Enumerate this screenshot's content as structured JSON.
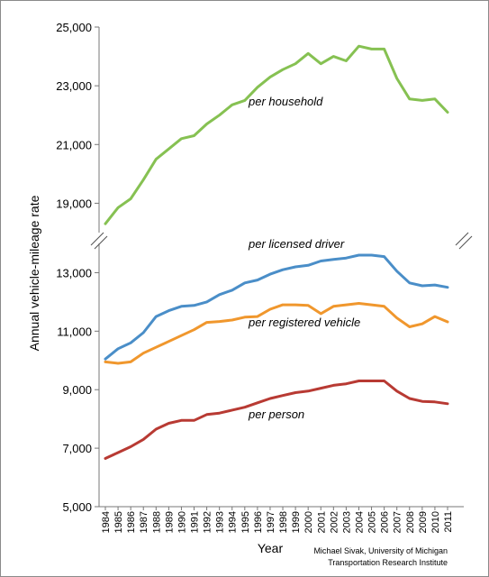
{
  "chart_data": {
    "type": "line",
    "title": "",
    "xlabel": "Year",
    "ylabel": "Annual vehicle-mileage rate",
    "credit": [
      "Michael Sivak, University of Michigan",
      "Transportation Research Institute"
    ],
    "x": [
      1984,
      1985,
      1986,
      1987,
      1988,
      1989,
      1990,
      1991,
      1992,
      1993,
      1994,
      1995,
      1996,
      1997,
      1998,
      1999,
      2000,
      2001,
      2002,
      2003,
      2004,
      2005,
      2006,
      2007,
      2008,
      2009,
      2010,
      2011
    ],
    "x_tick_labels": [
      "1984",
      "1985",
      "1986",
      "1987",
      "1988",
      "1989",
      "1990",
      "1991",
      "1992",
      "1993",
      "1994",
      "1995",
      "1996",
      "1997",
      "1998",
      "1999",
      "2000",
      "2001",
      "2002",
      "2003",
      "2004",
      "2005",
      "2006",
      "2007",
      "2008",
      "2009",
      "2010",
      "2011"
    ],
    "axis_break": true,
    "upper_panel": {
      "ylim": [
        18000,
        25000
      ],
      "y_tick_labels": [
        "25,000",
        "23,000",
        "21,000",
        "19,000"
      ],
      "y_ticks": [
        25000,
        23000,
        21000,
        19000
      ]
    },
    "lower_panel": {
      "ylim": [
        5000,
        14000
      ],
      "y_tick_labels": [
        "13,000",
        "11,000",
        "9,000",
        "7,000",
        "5,000"
      ],
      "y_ticks": [
        13000,
        11000,
        9000,
        7000,
        5000
      ]
    },
    "grid": false,
    "series": [
      {
        "name": "per household",
        "panel": "upper",
        "color": "#86c152",
        "values": [
          18300,
          18850,
          19150,
          19800,
          20500,
          20850,
          21200,
          21300,
          21700,
          22000,
          22350,
          22500,
          22950,
          23300,
          23550,
          23750,
          24100,
          23750,
          24000,
          23850,
          24350,
          24250,
          24250,
          23250,
          22550,
          22500,
          22550,
          22100
        ]
      },
      {
        "name": "per licensed driver",
        "panel": "lower",
        "color": "#4a8ec8",
        "values": [
          10050,
          10400,
          10600,
          10950,
          11500,
          11700,
          11850,
          11880,
          12000,
          12250,
          12400,
          12650,
          12750,
          12950,
          13100,
          13200,
          13250,
          13400,
          13450,
          13500,
          13600,
          13600,
          13550,
          13050,
          12650,
          12550,
          12580,
          12500
        ]
      },
      {
        "name": "per registered vehicle",
        "panel": "lower",
        "color": "#f0972d",
        "values": [
          9950,
          9900,
          9950,
          10250,
          10450,
          10650,
          10850,
          11050,
          11300,
          11330,
          11380,
          11480,
          11500,
          11750,
          11900,
          11900,
          11880,
          11600,
          11850,
          11900,
          11950,
          11900,
          11850,
          11450,
          11150,
          11250,
          11500,
          11320
        ]
      },
      {
        "name": "per person",
        "panel": "lower",
        "color": "#b83a33",
        "values": [
          6650,
          6850,
          7050,
          7300,
          7650,
          7850,
          7950,
          7950,
          8150,
          8200,
          8300,
          8400,
          8550,
          8700,
          8800,
          8900,
          8950,
          9050,
          9150,
          9200,
          9300,
          9300,
          9300,
          8950,
          8700,
          8600,
          8580,
          8520
        ]
      }
    ]
  }
}
